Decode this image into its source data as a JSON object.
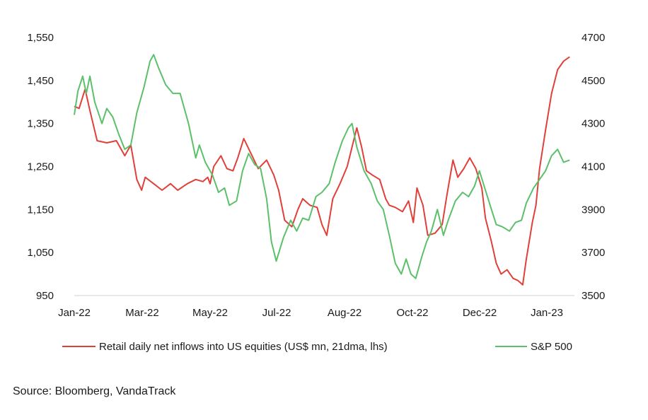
{
  "source_note": "Source: Bloomberg, VandaTrack",
  "chart_data": {
    "type": "line",
    "x_ticks": [
      "Jan-22",
      "Mar-22",
      "May-22",
      "Jul-22",
      "Aug-22",
      "Oct-22",
      "Dec-22",
      "Jan-23"
    ],
    "y_left": {
      "range": [
        950,
        1550
      ],
      "ticks": [
        "950",
        "1,050",
        "1,150",
        "1,250",
        "1,350",
        "1,450",
        "1,550"
      ]
    },
    "y_right": {
      "range": [
        3500,
        4700
      ],
      "ticks": [
        "3500",
        "3700",
        "3900",
        "4100",
        "4300",
        "4500",
        "4700"
      ]
    },
    "grid": false,
    "legend_position": "bottom",
    "series": [
      {
        "name": "Retail daily net inflows into US equities (US$ mn, 21dma, lhs)",
        "axis": "left",
        "color": "#e0403a",
        "points": [
          [
            "2022-01-01",
            1390
          ],
          [
            "2022-01-05",
            1385
          ],
          [
            "2022-01-10",
            1430
          ],
          [
            "2022-01-14",
            1380
          ],
          [
            "2022-01-20",
            1310
          ],
          [
            "2022-01-28",
            1305
          ],
          [
            "2022-02-05",
            1310
          ],
          [
            "2022-02-12",
            1275
          ],
          [
            "2022-02-17",
            1300
          ],
          [
            "2022-02-22",
            1220
          ],
          [
            "2022-02-26",
            1195
          ],
          [
            "2022-03-01",
            1225
          ],
          [
            "2022-03-08",
            1210
          ],
          [
            "2022-03-15",
            1195
          ],
          [
            "2022-03-22",
            1210
          ],
          [
            "2022-03-28",
            1195
          ],
          [
            "2022-04-05",
            1210
          ],
          [
            "2022-04-12",
            1220
          ],
          [
            "2022-04-18",
            1215
          ],
          [
            "2022-04-22",
            1225
          ],
          [
            "2022-04-24",
            1210
          ],
          [
            "2022-04-27",
            1250
          ],
          [
            "2022-05-03",
            1275
          ],
          [
            "2022-05-08",
            1245
          ],
          [
            "2022-05-13",
            1240
          ],
          [
            "2022-05-17",
            1270
          ],
          [
            "2022-05-22",
            1315
          ],
          [
            "2022-05-28",
            1280
          ],
          [
            "2022-06-03",
            1245
          ],
          [
            "2022-06-10",
            1265
          ],
          [
            "2022-06-16",
            1230
          ],
          [
            "2022-06-20",
            1195
          ],
          [
            "2022-06-25",
            1125
          ],
          [
            "2022-07-01",
            1110
          ],
          [
            "2022-07-06",
            1150
          ],
          [
            "2022-07-10",
            1175
          ],
          [
            "2022-07-16",
            1160
          ],
          [
            "2022-07-22",
            1155
          ],
          [
            "2022-07-26",
            1115
          ],
          [
            "2022-07-30",
            1090
          ],
          [
            "2022-08-04",
            1175
          ],
          [
            "2022-08-10",
            1210
          ],
          [
            "2022-08-16",
            1250
          ],
          [
            "2022-08-20",
            1295
          ],
          [
            "2022-08-24",
            1340
          ],
          [
            "2022-08-28",
            1295
          ],
          [
            "2022-09-01",
            1240
          ],
          [
            "2022-09-06",
            1230
          ],
          [
            "2022-09-12",
            1220
          ],
          [
            "2022-09-17",
            1175
          ],
          [
            "2022-09-20",
            1160
          ],
          [
            "2022-09-25",
            1155
          ],
          [
            "2022-10-01",
            1145
          ],
          [
            "2022-10-06",
            1170
          ],
          [
            "2022-10-10",
            1120
          ],
          [
            "2022-10-13",
            1200
          ],
          [
            "2022-10-18",
            1160
          ],
          [
            "2022-10-22",
            1090
          ],
          [
            "2022-10-28",
            1095
          ],
          [
            "2022-11-03",
            1115
          ],
          [
            "2022-11-07",
            1185
          ],
          [
            "2022-11-12",
            1265
          ],
          [
            "2022-11-16",
            1225
          ],
          [
            "2022-11-21",
            1245
          ],
          [
            "2022-11-26",
            1270
          ],
          [
            "2022-12-01",
            1245
          ],
          [
            "2022-12-06",
            1200
          ],
          [
            "2022-12-09",
            1130
          ],
          [
            "2022-12-14",
            1075
          ],
          [
            "2022-12-18",
            1025
          ],
          [
            "2022-12-22",
            1000
          ],
          [
            "2022-12-27",
            1010
          ],
          [
            "2023-01-01",
            990
          ],
          [
            "2023-01-05",
            985
          ],
          [
            "2023-01-09",
            975
          ],
          [
            "2023-01-12",
            1035
          ],
          [
            "2023-01-17",
            1120
          ],
          [
            "2023-01-20",
            1160
          ],
          [
            "2023-01-23",
            1245
          ],
          [
            "2023-01-28",
            1335
          ],
          [
            "2023-02-02",
            1420
          ],
          [
            "2023-02-07",
            1475
          ],
          [
            "2023-02-12",
            1495
          ],
          [
            "2023-02-17",
            1505
          ]
        ]
      },
      {
        "name": "S&P 500",
        "axis": "right",
        "color": "#5cc06a",
        "points": [
          [
            "2022-01-01",
            4340
          ],
          [
            "2022-01-04",
            4450
          ],
          [
            "2022-01-08",
            4520
          ],
          [
            "2022-01-11",
            4440
          ],
          [
            "2022-01-14",
            4520
          ],
          [
            "2022-01-18",
            4400
          ],
          [
            "2022-01-24",
            4300
          ],
          [
            "2022-01-28",
            4370
          ],
          [
            "2022-02-02",
            4330
          ],
          [
            "2022-02-07",
            4250
          ],
          [
            "2022-02-12",
            4180
          ],
          [
            "2022-02-17",
            4200
          ],
          [
            "2022-02-22",
            4350
          ],
          [
            "2022-02-28",
            4470
          ],
          [
            "2022-03-05",
            4590
          ],
          [
            "2022-03-08",
            4620
          ],
          [
            "2022-03-12",
            4560
          ],
          [
            "2022-03-18",
            4480
          ],
          [
            "2022-03-24",
            4440
          ],
          [
            "2022-03-30",
            4440
          ],
          [
            "2022-04-06",
            4300
          ],
          [
            "2022-04-12",
            4140
          ],
          [
            "2022-04-15",
            4200
          ],
          [
            "2022-04-20",
            4120
          ],
          [
            "2022-04-26",
            4060
          ],
          [
            "2022-05-01",
            3980
          ],
          [
            "2022-05-06",
            4000
          ],
          [
            "2022-05-10",
            3920
          ],
          [
            "2022-05-16",
            3940
          ],
          [
            "2022-05-21",
            4080
          ],
          [
            "2022-05-26",
            4160
          ],
          [
            "2022-05-31",
            4110
          ],
          [
            "2022-06-05",
            4090
          ],
          [
            "2022-06-10",
            3950
          ],
          [
            "2022-06-14",
            3750
          ],
          [
            "2022-06-18",
            3660
          ],
          [
            "2022-06-24",
            3770
          ],
          [
            "2022-06-30",
            3850
          ],
          [
            "2022-07-05",
            3800
          ],
          [
            "2022-07-10",
            3860
          ],
          [
            "2022-07-15",
            3850
          ],
          [
            "2022-07-21",
            3960
          ],
          [
            "2022-07-26",
            3980
          ],
          [
            "2022-08-01",
            4020
          ],
          [
            "2022-08-06",
            4120
          ],
          [
            "2022-08-12",
            4220
          ],
          [
            "2022-08-17",
            4280
          ],
          [
            "2022-08-20",
            4300
          ],
          [
            "2022-08-24",
            4190
          ],
          [
            "2022-08-30",
            4080
          ],
          [
            "2022-09-05",
            4020
          ],
          [
            "2022-09-10",
            3940
          ],
          [
            "2022-09-15",
            3900
          ],
          [
            "2022-09-20",
            3780
          ],
          [
            "2022-09-25",
            3650
          ],
          [
            "2022-09-30",
            3600
          ],
          [
            "2022-10-04",
            3670
          ],
          [
            "2022-10-08",
            3600
          ],
          [
            "2022-10-12",
            3580
          ],
          [
            "2022-10-17",
            3680
          ],
          [
            "2022-10-21",
            3750
          ],
          [
            "2022-10-25",
            3800
          ],
          [
            "2022-10-30",
            3900
          ],
          [
            "2022-11-04",
            3780
          ],
          [
            "2022-11-08",
            3850
          ],
          [
            "2022-11-14",
            3940
          ],
          [
            "2022-11-20",
            3980
          ],
          [
            "2022-11-25",
            3960
          ],
          [
            "2022-11-30",
            4010
          ],
          [
            "2022-12-04",
            4080
          ],
          [
            "2022-12-09",
            3990
          ],
          [
            "2022-12-14",
            3900
          ],
          [
            "2022-12-18",
            3830
          ],
          [
            "2022-12-23",
            3820
          ],
          [
            "2022-12-29",
            3800
          ],
          [
            "2023-01-03",
            3840
          ],
          [
            "2023-01-08",
            3850
          ],
          [
            "2023-01-12",
            3930
          ],
          [
            "2023-01-18",
            4000
          ],
          [
            "2023-01-23",
            4040
          ],
          [
            "2023-01-28",
            4080
          ],
          [
            "2023-02-02",
            4150
          ],
          [
            "2023-02-07",
            4180
          ],
          [
            "2023-02-12",
            4120
          ],
          [
            "2023-02-17",
            4130
          ]
        ]
      }
    ]
  }
}
